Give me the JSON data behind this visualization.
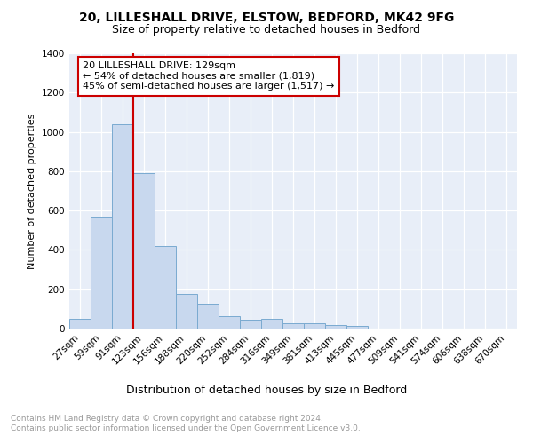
{
  "title1": "20, LILLESHALL DRIVE, ELSTOW, BEDFORD, MK42 9FG",
  "title2": "Size of property relative to detached houses in Bedford",
  "xlabel": "Distribution of detached houses by size in Bedford",
  "ylabel": "Number of detached properties",
  "bar_labels": [
    "27sqm",
    "59sqm",
    "91sqm",
    "123sqm",
    "156sqm",
    "188sqm",
    "220sqm",
    "252sqm",
    "284sqm",
    "316sqm",
    "349sqm",
    "381sqm",
    "413sqm",
    "445sqm",
    "477sqm",
    "509sqm",
    "541sqm",
    "574sqm",
    "606sqm",
    "638sqm",
    "670sqm"
  ],
  "bar_heights": [
    50,
    570,
    1040,
    790,
    420,
    178,
    125,
    65,
    47,
    50,
    28,
    26,
    17,
    12,
    0,
    0,
    0,
    0,
    0,
    0,
    0
  ],
  "bar_color": "#c8d8ee",
  "bar_edge_color": "#7aaad0",
  "red_line_color": "#cc0000",
  "red_line_x": 3,
  "annotation_lines": [
    "20 LILLESHALL DRIVE: 129sqm",
    "← 54% of detached houses are smaller (1,819)",
    "45% of semi-detached houses are larger (1,517) →"
  ],
  "annotation_box_color": "#ffffff",
  "annotation_box_edge": "#cc0000",
  "ylim": [
    0,
    1400
  ],
  "yticks": [
    0,
    200,
    400,
    600,
    800,
    1000,
    1200,
    1400
  ],
  "bg_color": "#ffffff",
  "plot_bg_color": "#e8eef8",
  "footer_text": "Contains HM Land Registry data © Crown copyright and database right 2024.\nContains public sector information licensed under the Open Government Licence v3.0.",
  "title1_fontsize": 10,
  "title2_fontsize": 9,
  "xlabel_fontsize": 9,
  "ylabel_fontsize": 8,
  "tick_fontsize": 7.5,
  "annotation_fontsize": 8,
  "footer_fontsize": 6.5
}
